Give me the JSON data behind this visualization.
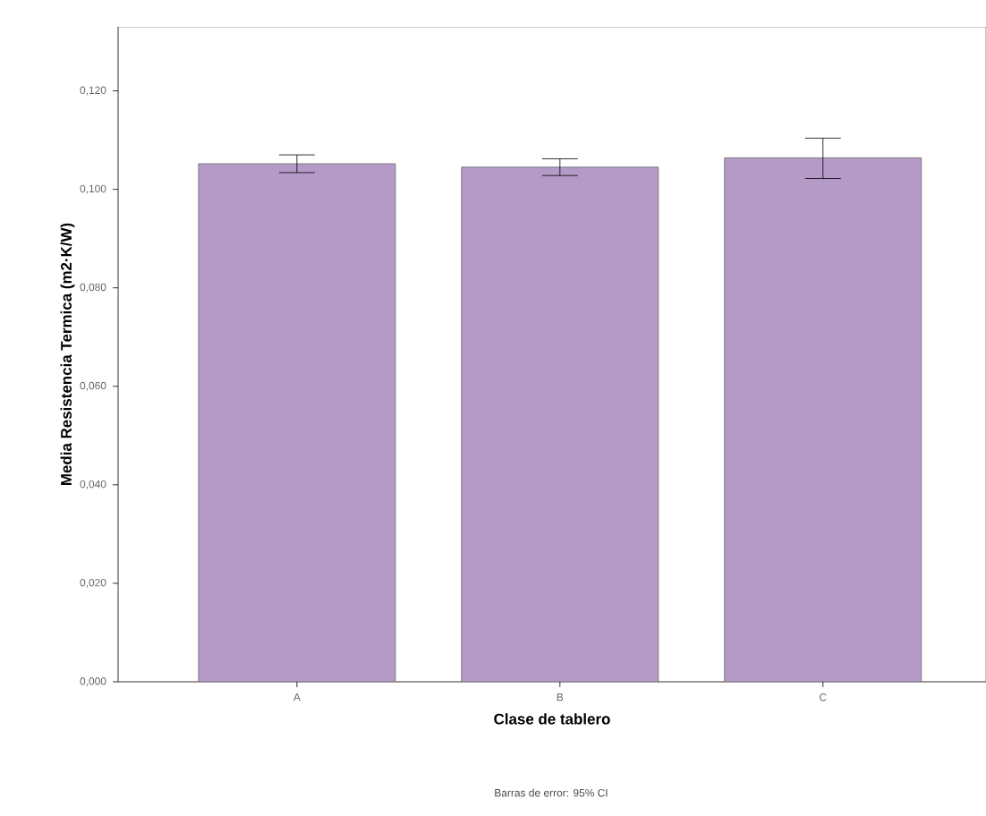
{
  "chart_data": {
    "type": "bar",
    "xlabel": "Clase de tablero",
    "ylabel": "Media Resistencia Termica (m2·K/W)",
    "categories": [
      "A",
      "B",
      "C"
    ],
    "values": [
      0.1052,
      0.1045,
      0.1064
    ],
    "errors": [
      [
        0.1034,
        0.107
      ],
      [
        0.1028,
        0.1062
      ],
      [
        0.1022,
        0.1104
      ]
    ],
    "color": "#b59ac8",
    "ylim": [
      0,
      0.133
    ],
    "yticks": [
      {
        "value": 0,
        "label": "0,000"
      },
      {
        "value": 0.02,
        "label": "0,020"
      },
      {
        "value": 0.04,
        "label": "0,040"
      },
      {
        "value": 0.06,
        "label": "0,060"
      },
      {
        "value": 0.08,
        "label": "0,080"
      },
      {
        "value": 0.1,
        "label": "0,100"
      },
      {
        "value": 0.12,
        "label": "0,120"
      }
    ],
    "grid": false,
    "annotations": [
      "Barras de error: 95% CI"
    ]
  }
}
